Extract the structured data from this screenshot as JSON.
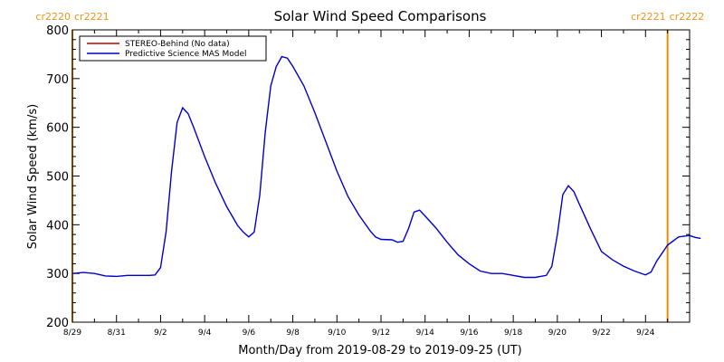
{
  "chart_data": {
    "type": "line",
    "title": "Solar Wind Speed Comparisons",
    "xlabel": "Month/Day from 2019-08-29 to 2019-09-25 (UT)",
    "ylabel": "Solar Wind Speed (km/s)",
    "xlim": [
      "2019-08-29",
      "2019-09-26"
    ],
    "ylim": [
      200,
      800
    ],
    "y_ticks": [
      200,
      300,
      400,
      500,
      600,
      700,
      800
    ],
    "x_ticks": [
      {
        "date": "2019-08-29",
        "label": "8/29"
      },
      {
        "date": "2019-08-31",
        "label": "8/31"
      },
      {
        "date": "2019-09-02",
        "label": "9/2"
      },
      {
        "date": "2019-09-04",
        "label": "9/4"
      },
      {
        "date": "2019-09-06",
        "label": "9/6"
      },
      {
        "date": "2019-09-08",
        "label": "9/8"
      },
      {
        "date": "2019-09-10",
        "label": "9/10"
      },
      {
        "date": "2019-09-12",
        "label": "9/12"
      },
      {
        "date": "2019-09-14",
        "label": "9/14"
      },
      {
        "date": "2019-09-16",
        "label": "9/16"
      },
      {
        "date": "2019-09-18",
        "label": "9/18"
      },
      {
        "date": "2019-09-20",
        "label": "9/20"
      },
      {
        "date": "2019-09-22",
        "label": "9/22"
      },
      {
        "date": "2019-09-24",
        "label": "9/24"
      }
    ],
    "grid": false,
    "legend": {
      "placement": "top-left",
      "entries": [
        {
          "name": "STEREO-Behind (No data)",
          "color": "#c00000"
        },
        {
          "name": "Predictive Science MAS Model",
          "color": "#0000cc"
        }
      ]
    },
    "series": [
      {
        "name": "Predictive Science MAS Model",
        "color": "#0000cc",
        "points": [
          [
            "2019-08-29 00:00",
            300
          ],
          [
            "2019-08-29 12:00",
            302
          ],
          [
            "2019-08-30 00:00",
            300
          ],
          [
            "2019-08-30 12:00",
            295
          ],
          [
            "2019-08-31 00:00",
            294
          ],
          [
            "2019-08-31 12:00",
            296
          ],
          [
            "2019-09-01 00:00",
            296
          ],
          [
            "2019-09-01 12:00",
            296
          ],
          [
            "2019-09-01 18:00",
            297
          ],
          [
            "2019-09-02 00:00",
            312
          ],
          [
            "2019-09-02 06:00",
            385
          ],
          [
            "2019-09-02 12:00",
            510
          ],
          [
            "2019-09-02 18:00",
            610
          ],
          [
            "2019-09-03 00:00",
            640
          ],
          [
            "2019-09-03 06:00",
            628
          ],
          [
            "2019-09-03 12:00",
            600
          ],
          [
            "2019-09-04 00:00",
            540
          ],
          [
            "2019-09-04 12:00",
            485
          ],
          [
            "2019-09-05 00:00",
            437
          ],
          [
            "2019-09-05 12:00",
            398
          ],
          [
            "2019-09-05 18:00",
            385
          ],
          [
            "2019-09-06 00:00",
            375
          ],
          [
            "2019-09-06 06:00",
            385
          ],
          [
            "2019-09-06 12:00",
            460
          ],
          [
            "2019-09-06 18:00",
            590
          ],
          [
            "2019-09-07 00:00",
            685
          ],
          [
            "2019-09-07 06:00",
            725
          ],
          [
            "2019-09-07 12:00",
            745
          ],
          [
            "2019-09-07 18:00",
            742
          ],
          [
            "2019-09-08 00:00",
            725
          ],
          [
            "2019-09-08 12:00",
            685
          ],
          [
            "2019-09-09 00:00",
            630
          ],
          [
            "2019-09-09 12:00",
            570
          ],
          [
            "2019-09-10 00:00",
            510
          ],
          [
            "2019-09-10 12:00",
            458
          ],
          [
            "2019-09-11 00:00",
            420
          ],
          [
            "2019-09-11 12:00",
            388
          ],
          [
            "2019-09-11 18:00",
            375
          ],
          [
            "2019-09-12 00:00",
            370
          ],
          [
            "2019-09-12 12:00",
            369
          ],
          [
            "2019-09-12 18:00",
            364
          ],
          [
            "2019-09-13 00:00",
            366
          ],
          [
            "2019-09-13 06:00",
            392
          ],
          [
            "2019-09-13 12:00",
            426
          ],
          [
            "2019-09-13 18:00",
            430
          ],
          [
            "2019-09-14 00:00",
            418
          ],
          [
            "2019-09-14 12:00",
            393
          ],
          [
            "2019-09-15 00:00",
            364
          ],
          [
            "2019-09-15 12:00",
            338
          ],
          [
            "2019-09-16 00:00",
            320
          ],
          [
            "2019-09-16 12:00",
            305
          ],
          [
            "2019-09-17 00:00",
            300
          ],
          [
            "2019-09-17 12:00",
            300
          ],
          [
            "2019-09-18 00:00",
            296
          ],
          [
            "2019-09-18 12:00",
            292
          ],
          [
            "2019-09-19 00:00",
            292
          ],
          [
            "2019-09-19 12:00",
            296
          ],
          [
            "2019-09-19 18:00",
            315
          ],
          [
            "2019-09-20 00:00",
            380
          ],
          [
            "2019-09-20 06:00",
            462
          ],
          [
            "2019-09-20 12:00",
            480
          ],
          [
            "2019-09-20 18:00",
            468
          ],
          [
            "2019-09-21 00:00",
            442
          ],
          [
            "2019-09-21 12:00",
            392
          ],
          [
            "2019-09-22 00:00",
            345
          ],
          [
            "2019-09-22 12:00",
            328
          ],
          [
            "2019-09-23 00:00",
            315
          ],
          [
            "2019-09-23 12:00",
            305
          ],
          [
            "2019-09-24 00:00",
            297
          ],
          [
            "2019-09-24 06:00",
            303
          ],
          [
            "2019-09-24 12:00",
            325
          ],
          [
            "2019-09-25 00:00",
            358
          ],
          [
            "2019-09-25 12:00",
            375
          ],
          [
            "2019-09-26 00:00",
            378
          ],
          [
            "2019-09-26 06:00",
            374
          ],
          [
            "2019-09-26 12:00",
            372
          ]
        ]
      }
    ],
    "carrington_markers": [
      {
        "date": "2019-08-29",
        "left_label": "cr2220",
        "right_label": "cr2221",
        "color": "#f08c00"
      },
      {
        "date": "2019-09-25",
        "left_label": "cr2221",
        "right_label": "cr2222",
        "color": "#f08c00"
      }
    ]
  }
}
